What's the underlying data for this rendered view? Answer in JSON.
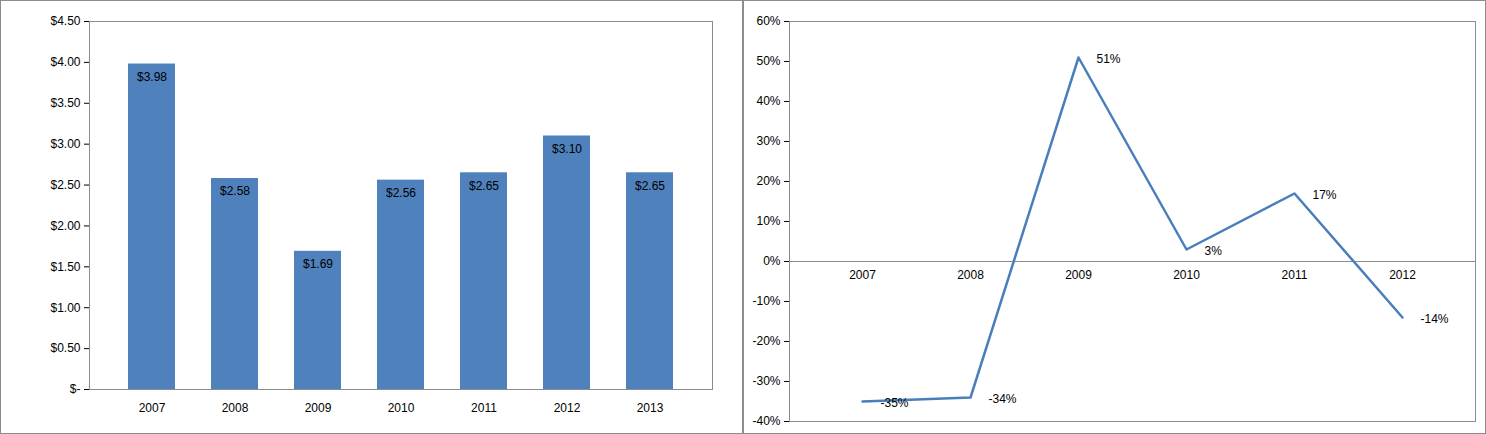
{
  "chart_data": [
    {
      "type": "bar",
      "categories": [
        "2007",
        "2008",
        "2009",
        "2010",
        "2011",
        "2012",
        "2013"
      ],
      "values": [
        3.98,
        2.58,
        1.69,
        2.56,
        2.65,
        3.1,
        2.65
      ],
      "value_labels": [
        "$3.98",
        "$2.58",
        "$1.69",
        "$2.56",
        "$2.65",
        "$3.10",
        "$2.65"
      ],
      "data_labels": true,
      "color": "#4f81bd",
      "grid": false,
      "ylim": [
        0,
        4.5
      ],
      "yticks": [
        {
          "value": 0,
          "label": "$-"
        },
        {
          "value": 0.5,
          "label": "$0.50"
        },
        {
          "value": 1,
          "label": "$1.00"
        },
        {
          "value": 1.5,
          "label": "$1.50"
        },
        {
          "value": 2,
          "label": "$2.00"
        },
        {
          "value": 2.5,
          "label": "$2.50"
        },
        {
          "value": 3,
          "label": "$3.00"
        },
        {
          "value": 3.5,
          "label": "$3.50"
        },
        {
          "value": 4,
          "label": "$4.00"
        },
        {
          "value": 4.5,
          "label": "$4.50"
        }
      ]
    },
    {
      "type": "line",
      "categories": [
        "2007",
        "2008",
        "2009",
        "2010",
        "2011",
        "2012"
      ],
      "values": [
        -35,
        -34,
        51,
        3,
        17,
        -14
      ],
      "value_labels": [
        "-35%",
        "-34%",
        "51%",
        "3%",
        "17%",
        "-14%"
      ],
      "data_labels": true,
      "color": "#4a7ebb",
      "grid": false,
      "ylim": [
        -40,
        60
      ],
      "yticks": [
        {
          "value": -40,
          "label": "-40%"
        },
        {
          "value": -30,
          "label": "-30%"
        },
        {
          "value": -20,
          "label": "-20%"
        },
        {
          "value": -10,
          "label": "-10%"
        },
        {
          "value": 0,
          "label": "0%"
        },
        {
          "value": 10,
          "label": "10%"
        },
        {
          "value": 20,
          "label": "20%"
        },
        {
          "value": 30,
          "label": "30%"
        },
        {
          "value": 40,
          "label": "40%"
        },
        {
          "value": 50,
          "label": "50%"
        },
        {
          "value": 60,
          "label": "60%"
        }
      ]
    }
  ]
}
